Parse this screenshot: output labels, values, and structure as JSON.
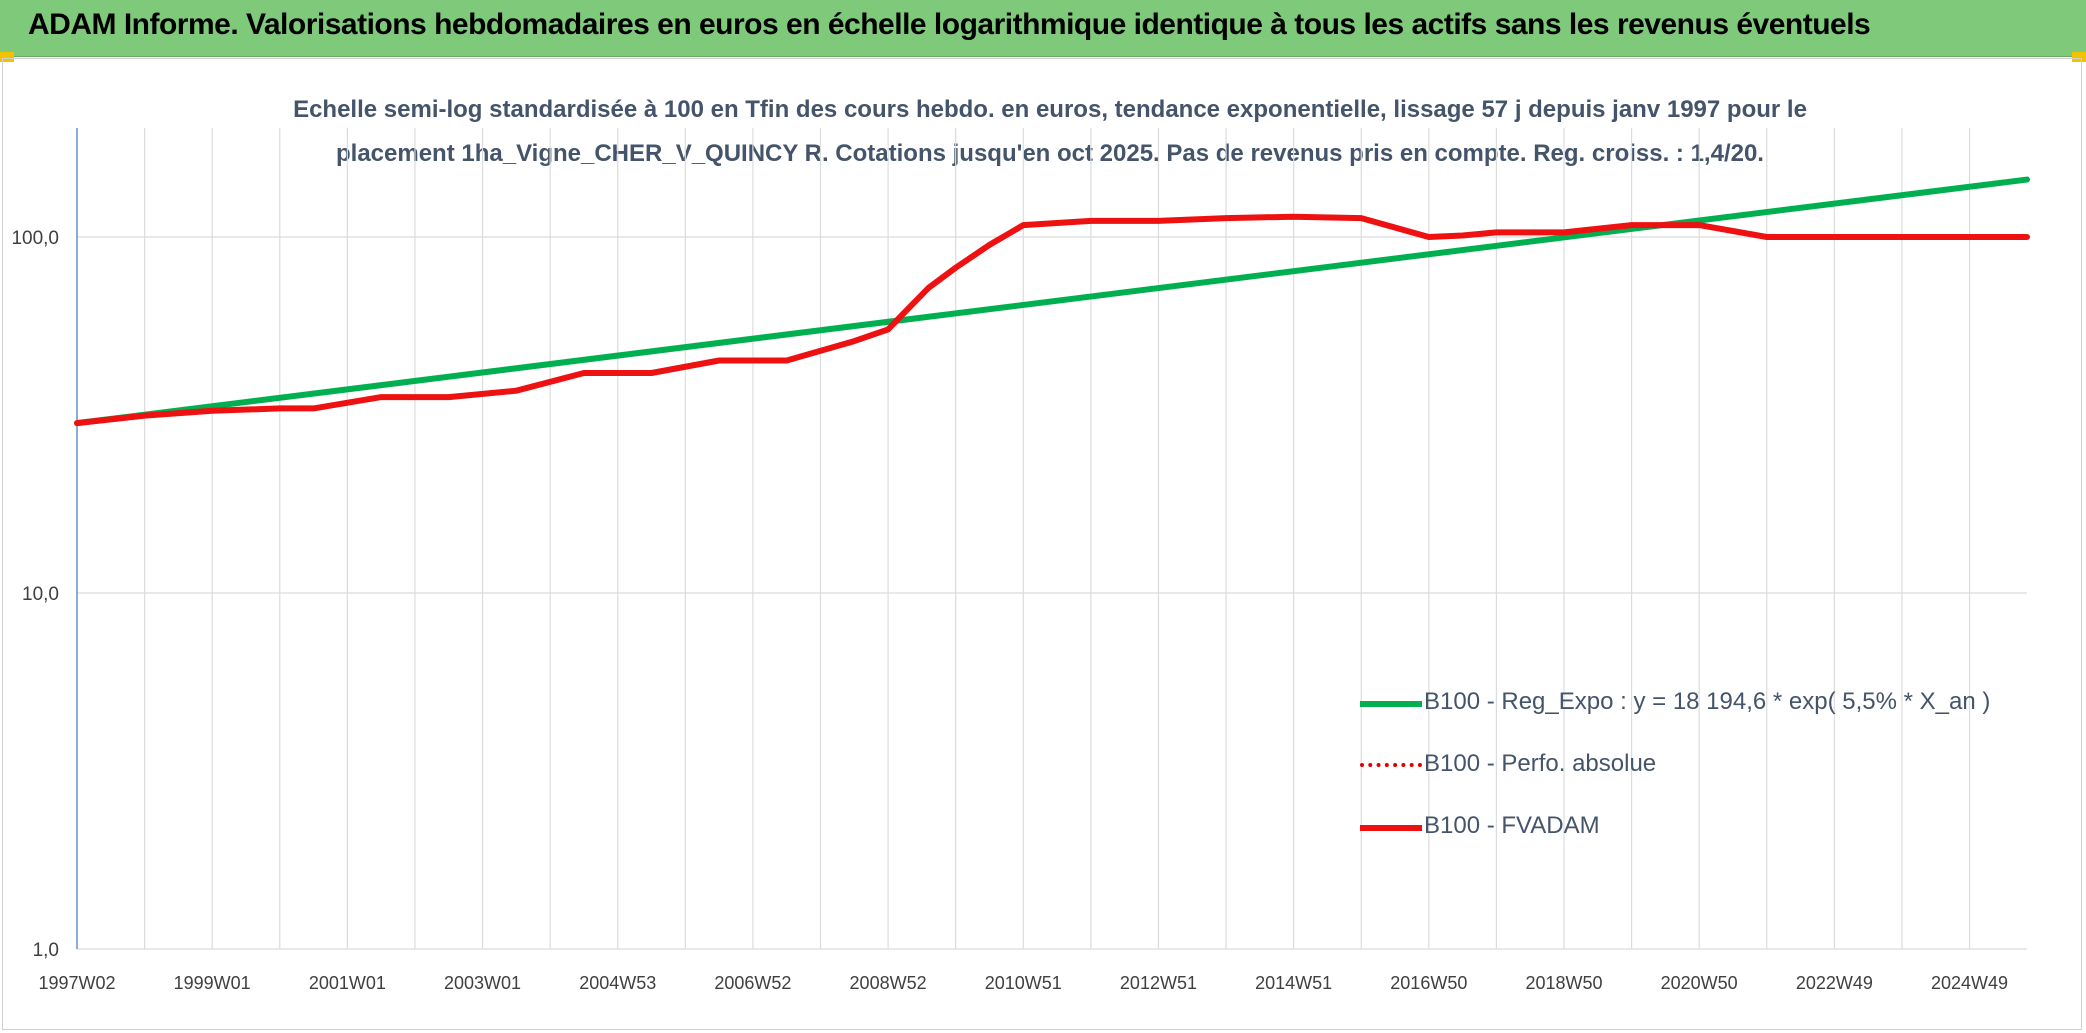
{
  "banner": {
    "title": "ADAM Informe. Valorisations hebdomadaires en euros en échelle logarithmique identique à tous les actifs sans les revenus éventuels",
    "color": "#7fc97a"
  },
  "chart_data": {
    "type": "line",
    "title_line1": "Echelle semi-log standardisée à 100 en Tfin des cours hebdo. en euros, tendance exponentielle, lissage 57 j depuis janv 1997 pour le",
    "title_line2": "placement 1ha_Vigne_CHER_V_QUINCY R. Cotations jusqu'en oct 2025. Pas de revenus pris en compte. Reg. croiss. : 1,4/20.",
    "y_scale": "log",
    "ylim": [
      1,
      180
    ],
    "y_ticks": [
      "1,0",
      "10,0",
      "100,0"
    ],
    "xlim": [
      1997.0,
      2025.85
    ],
    "x_ticks": [
      {
        "label": "1997W02",
        "x": 1997.0
      },
      {
        "label": "1999W01",
        "x": 1999.0
      },
      {
        "label": "2001W01",
        "x": 2001.0
      },
      {
        "label": "2003W01",
        "x": 2003.0
      },
      {
        "label": "2004W53",
        "x": 2005.0
      },
      {
        "label": "2006W52",
        "x": 2007.0
      },
      {
        "label": "2008W52",
        "x": 2009.0
      },
      {
        "label": "2010W51",
        "x": 2011.0
      },
      {
        "label": "2012W51",
        "x": 2013.0
      },
      {
        "label": "2014W51",
        "x": 2015.0
      },
      {
        "label": "2016W50",
        "x": 2017.0
      },
      {
        "label": "2018W50",
        "x": 2019.0
      },
      {
        "label": "2020W50",
        "x": 2021.0
      },
      {
        "label": "2022W49",
        "x": 2023.0
      },
      {
        "label": "2024W49",
        "x": 2025.0
      }
    ],
    "grid": true,
    "legend_position": "bottom-right",
    "series": [
      {
        "name": "B100 - Reg_Expo : y = 18 194,6 * exp( 5,5% *  X_an )",
        "color": "#00b050",
        "style": "solid",
        "x": [
          1997.0,
          2025.85
        ],
        "y": [
          30.0,
          145.0
        ]
      },
      {
        "name": "B100 - Perfo. absolue",
        "color": "#e00000",
        "style": "dotted",
        "x": [],
        "y": []
      },
      {
        "name": "B100 - FVADAM",
        "color": "#ee1111",
        "style": "solid",
        "x": [
          1997.0,
          1998.0,
          1999.0,
          2000.0,
          2000.5,
          2001.5,
          2002.5,
          2003.5,
          2004.5,
          2005.5,
          2006.5,
          2007.5,
          2008.5,
          2009.0,
          2009.3,
          2009.6,
          2010.0,
          2010.5,
          2011.0,
          2012.0,
          2013.0,
          2014.0,
          2015.0,
          2016.0,
          2017.0,
          2017.5,
          2018.0,
          2019.0,
          2020.0,
          2021.0,
          2022.0,
          2023.0,
          2024.0,
          2025.0,
          2025.85
        ],
        "y": [
          30.0,
          31.5,
          32.5,
          33.0,
          33.0,
          35.5,
          35.5,
          37.0,
          41.5,
          41.5,
          45.0,
          45.0,
          51.0,
          55.0,
          63.0,
          72.0,
          82.0,
          95.0,
          108.0,
          111.0,
          111.0,
          113.0,
          114.0,
          113.0,
          100.0,
          101.0,
          103.0,
          103.0,
          108.0,
          108.0,
          100.0,
          100.0,
          100.0,
          100.0,
          100.0
        ]
      }
    ]
  }
}
